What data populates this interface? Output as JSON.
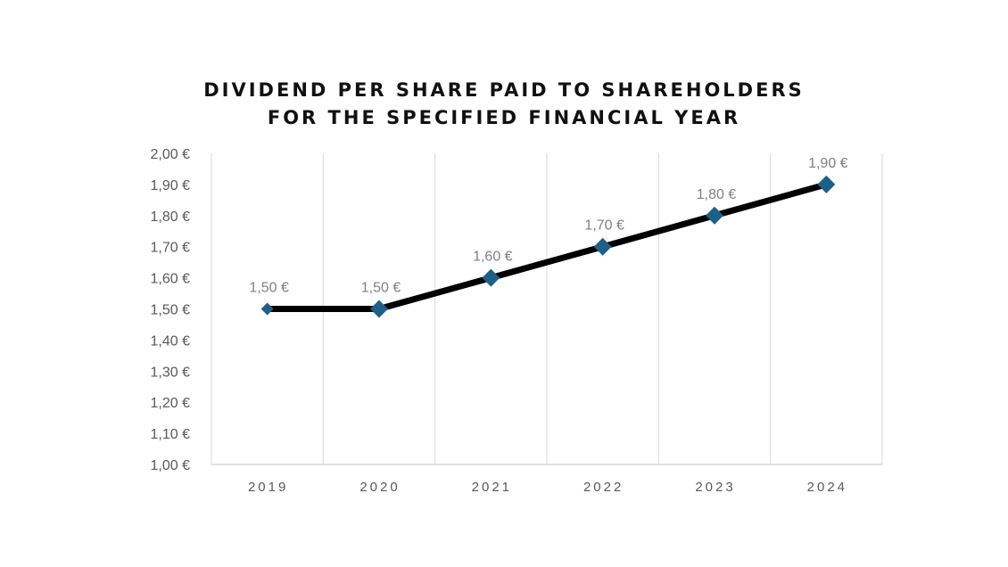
{
  "chart_data": {
    "type": "line",
    "title": [
      "DIVIDEND PER SHARE PAID TO SHAREHOLDERS",
      "FOR THE SPECIFIED FINANCIAL YEAR"
    ],
    "categories": [
      "2019",
      "2020",
      "2021",
      "2022",
      "2023",
      "2024"
    ],
    "series": [
      {
        "values": [
          1.5,
          1.5,
          1.6,
          1.7,
          1.8,
          1.9
        ],
        "data_labels": [
          "1,50 €",
          "1,50 €",
          "1,60 €",
          "1,70 €",
          "1,80 €",
          "1,90 €"
        ],
        "line_color": "#000000",
        "marker": "diamond",
        "marker_color": "#1f5f86"
      }
    ],
    "ylim": [
      1.0,
      2.0
    ],
    "y_ticks": [
      1.0,
      1.1,
      1.2,
      1.3,
      1.4,
      1.5,
      1.6,
      1.7,
      1.8,
      1.9,
      2.0
    ],
    "y_tick_labels": [
      "1,00 €",
      "1,10 €",
      "1,20 €",
      "1,30 €",
      "1,40 €",
      "1,50 €",
      "1,60 €",
      "1,70 €",
      "1,80 €",
      "1,90 €",
      "2,00 €"
    ],
    "xlabel": "",
    "ylabel": "",
    "grid": "vertical",
    "legend": "none",
    "colors": {
      "gridline": "#d9d9d9",
      "axis": "#d9d9d9",
      "line": "#000000",
      "marker": "#1f5f86"
    }
  }
}
